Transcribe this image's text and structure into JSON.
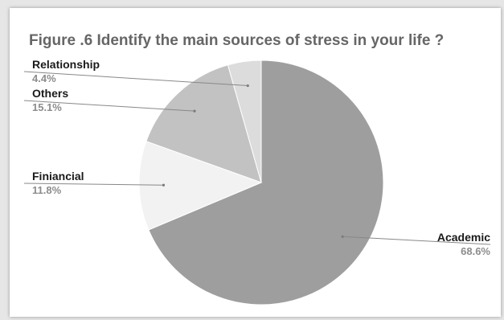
{
  "chart_data": {
    "type": "pie",
    "title": "Figure .6 Identify the main sources of stress in your life ?",
    "slices": [
      {
        "label": "Academic",
        "percent_label": "68.6%",
        "value": 68.6,
        "color": "#9e9e9e"
      },
      {
        "label": "Finiancial",
        "percent_label": "11.8%",
        "value": 11.8,
        "color": "#f2f2f2"
      },
      {
        "label": "Others",
        "percent_label": "15.1%",
        "value": 15.1,
        "color": "#c2c2c2"
      },
      {
        "label": "Relationship",
        "percent_label": "4.4%",
        "value": 4.4,
        "color": "#dcdcdc"
      }
    ],
    "start_angle_deg": 0,
    "direction": "clockwise",
    "legend": "none"
  }
}
